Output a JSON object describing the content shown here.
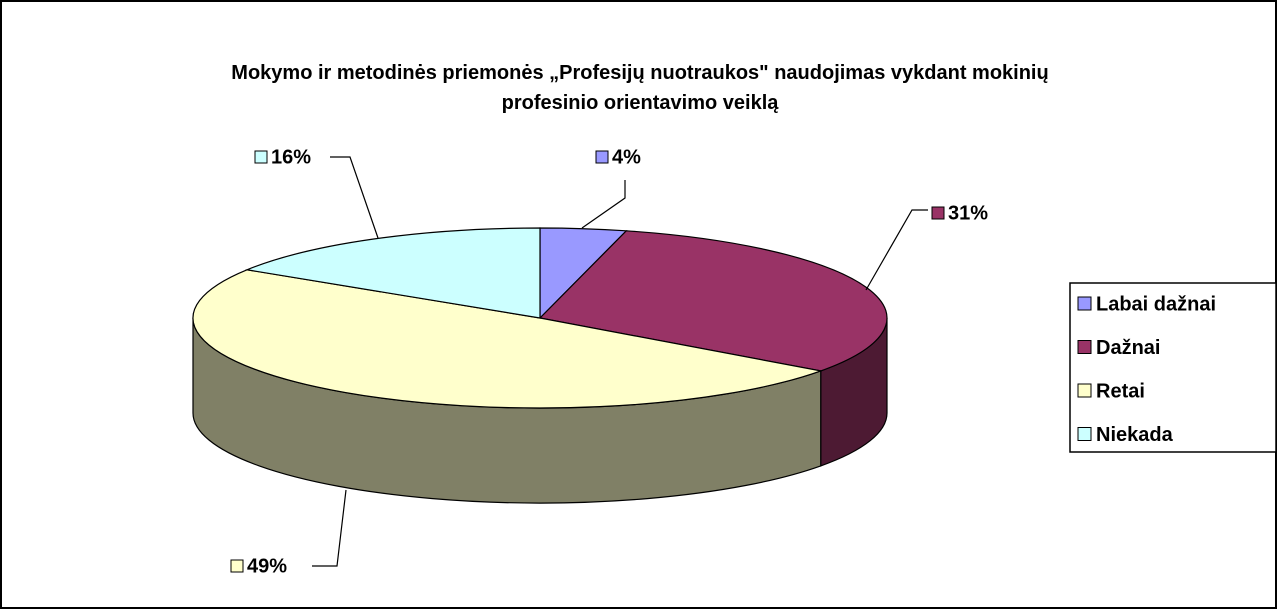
{
  "chart_data": {
    "type": "pie",
    "title": "Mokymo ir metodinės priemonės „Profesijų nuotraukos\" naudojimas vykdant mokinių profesinio orientavimo veiklą",
    "categories": [
      "Labai dažnai",
      "Dažnai",
      "Retai",
      "Niekada"
    ],
    "values": [
      4,
      31,
      49,
      16
    ],
    "value_labels": [
      "4%",
      "31%",
      "49%",
      "16%"
    ],
    "colors": [
      "#9999ff",
      "#993366",
      "#ffffcc",
      "#ccffff"
    ],
    "legend": "right"
  }
}
